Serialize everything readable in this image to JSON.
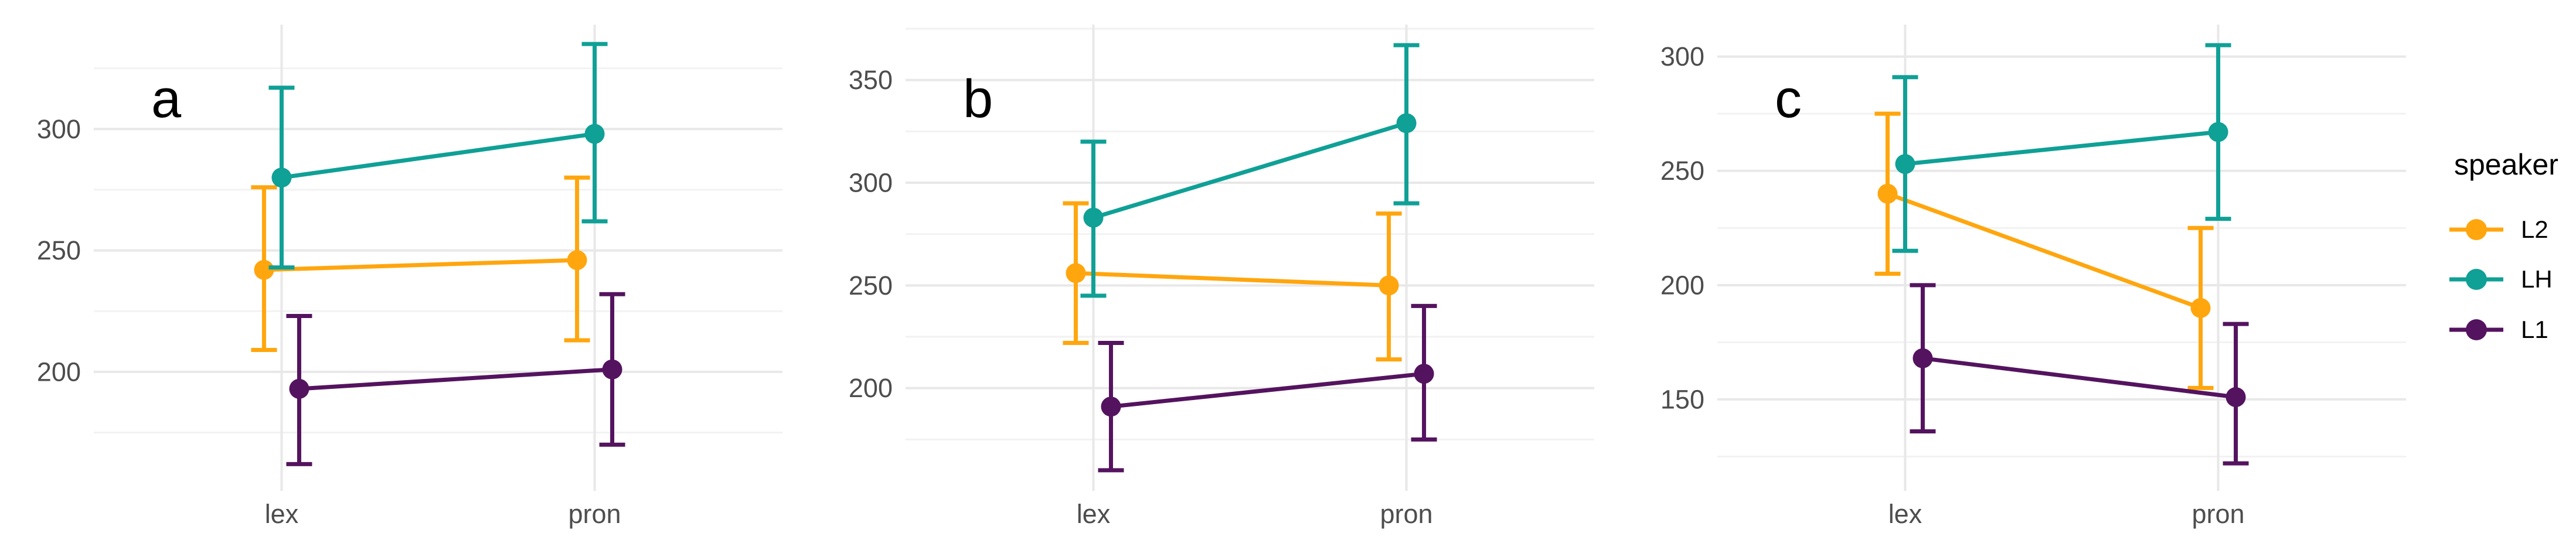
{
  "figure": {
    "background": "#FFFFFF"
  },
  "style": {
    "grid_major_color": "#E8E8E8",
    "grid_minor_color": "#F2F2F2",
    "axis_text_color": "#4D4D4D",
    "panel_letter_color": "#000000"
  },
  "legend": {
    "title": "speaker",
    "items": [
      {
        "label": "L2",
        "color": "#FFA60E"
      },
      {
        "label": "LH",
        "color": "#0FA096"
      },
      {
        "label": "L1",
        "color": "#54135F"
      }
    ]
  },
  "chart_data": [
    {
      "type": "line",
      "panel_label": "a",
      "x_categories": [
        "lex",
        "pron"
      ],
      "ylim": [
        151,
        343
      ],
      "yticks": [
        200,
        250,
        300
      ],
      "grid": true,
      "legend_position": "right-of-figure",
      "series": [
        {
          "name": "L2",
          "color": "#FFA60E",
          "values": [
            242,
            246
          ],
          "ci_low": [
            209,
            213
          ],
          "ci_high": [
            276,
            280
          ]
        },
        {
          "name": "LH",
          "color": "#0FA096",
          "values": [
            280,
            298
          ],
          "ci_low": [
            243,
            262
          ],
          "ci_high": [
            317,
            335
          ]
        },
        {
          "name": "L1",
          "color": "#54135F",
          "values": [
            193,
            201
          ],
          "ci_low": [
            162,
            170
          ],
          "ci_high": [
            223,
            232
          ]
        }
      ]
    },
    {
      "type": "line",
      "panel_label": "b",
      "x_categories": [
        "lex",
        "pron"
      ],
      "ylim": [
        150,
        377
      ],
      "yticks": [
        200,
        250,
        300,
        350
      ],
      "grid": true,
      "legend_position": "right-of-figure",
      "series": [
        {
          "name": "L2",
          "color": "#FFA60E",
          "values": [
            256,
            250
          ],
          "ci_low": [
            222,
            214
          ],
          "ci_high": [
            290,
            285
          ]
        },
        {
          "name": "LH",
          "color": "#0FA096",
          "values": [
            283,
            329
          ],
          "ci_low": [
            245,
            290
          ],
          "ci_high": [
            320,
            367
          ]
        },
        {
          "name": "L1",
          "color": "#54135F",
          "values": [
            191,
            207
          ],
          "ci_low": [
            160,
            175
          ],
          "ci_high": [
            222,
            240
          ]
        }
      ]
    },
    {
      "type": "line",
      "panel_label": "c",
      "x_categories": [
        "lex",
        "pron"
      ],
      "ylim": [
        110,
        314
      ],
      "yticks": [
        150,
        200,
        250,
        300
      ],
      "grid": true,
      "legend_position": "right-of-figure",
      "series": [
        {
          "name": "L2",
          "color": "#FFA60E",
          "values": [
            240,
            190
          ],
          "ci_low": [
            205,
            155
          ],
          "ci_high": [
            275,
            225
          ]
        },
        {
          "name": "LH",
          "color": "#0FA096",
          "values": [
            253,
            267
          ],
          "ci_low": [
            215,
            229
          ],
          "ci_high": [
            291,
            305
          ]
        },
        {
          "name": "L1",
          "color": "#54135F",
          "values": [
            168,
            151
          ],
          "ci_low": [
            136,
            122
          ],
          "ci_high": [
            200,
            183
          ]
        }
      ]
    }
  ]
}
